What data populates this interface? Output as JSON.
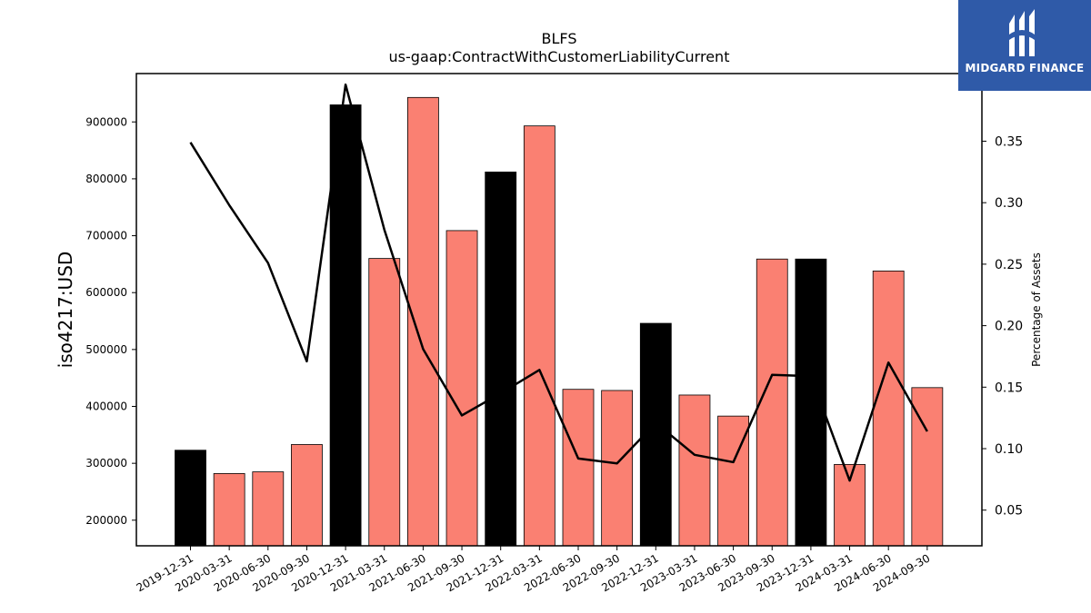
{
  "chart_data": {
    "type": "bar",
    "title": "BLFS",
    "subtitle": "us-gaap:ContractWithCustomerLiabilityCurrent",
    "ylabel": "iso4217:USD",
    "y2label": "Percentage of Assets",
    "categories": [
      "2019-12-31",
      "2020-03-31",
      "2020-06-30",
      "2020-09-30",
      "2020-12-31",
      "2021-03-31",
      "2021-06-30",
      "2021-09-30",
      "2021-12-31",
      "2022-03-31",
      "2022-06-30",
      "2022-09-30",
      "2022-12-31",
      "2023-03-31",
      "2023-06-30",
      "2023-09-30",
      "2023-12-31",
      "2024-03-31",
      "2024-06-30",
      "2024-09-30"
    ],
    "values": [
      323000,
      282000,
      285000,
      333000,
      930000,
      660000,
      943000,
      709000,
      812000,
      893000,
      430000,
      428000,
      546000,
      420000,
      383000,
      659000,
      659000,
      298000,
      638000,
      433000
    ],
    "bar_colors": [
      "#000000",
      "#fa8072",
      "#fa8072",
      "#fa8072",
      "#000000",
      "#fa8072",
      "#fa8072",
      "#fa8072",
      "#000000",
      "#fa8072",
      "#fa8072",
      "#fa8072",
      "#000000",
      "#fa8072",
      "#fa8072",
      "#fa8072",
      "#000000",
      "#fa8072",
      "#fa8072",
      "#fa8072"
    ],
    "line_values": [
      0.349,
      0.298,
      0.251,
      0.171,
      0.396,
      0.278,
      0.181,
      0.127,
      0.145,
      0.164,
      0.092,
      0.088,
      0.121,
      0.095,
      0.089,
      0.16,
      0.159,
      0.074,
      0.17,
      0.114
    ],
    "line_color": "#000000",
    "ylim": [
      155000,
      985000
    ],
    "y2lim": [
      0.021,
      0.405
    ],
    "yticks": [
      200000,
      300000,
      400000,
      500000,
      600000,
      700000,
      800000,
      900000
    ],
    "y2ticks": [
      0.05,
      0.1,
      0.15,
      0.2,
      0.25,
      0.3,
      0.35
    ],
    "grid": false,
    "legend": "none"
  },
  "logo": {
    "text": "MIDGARD FINANCE",
    "mark": "midgard-logo-icon",
    "color": "#2f5aa8"
  }
}
